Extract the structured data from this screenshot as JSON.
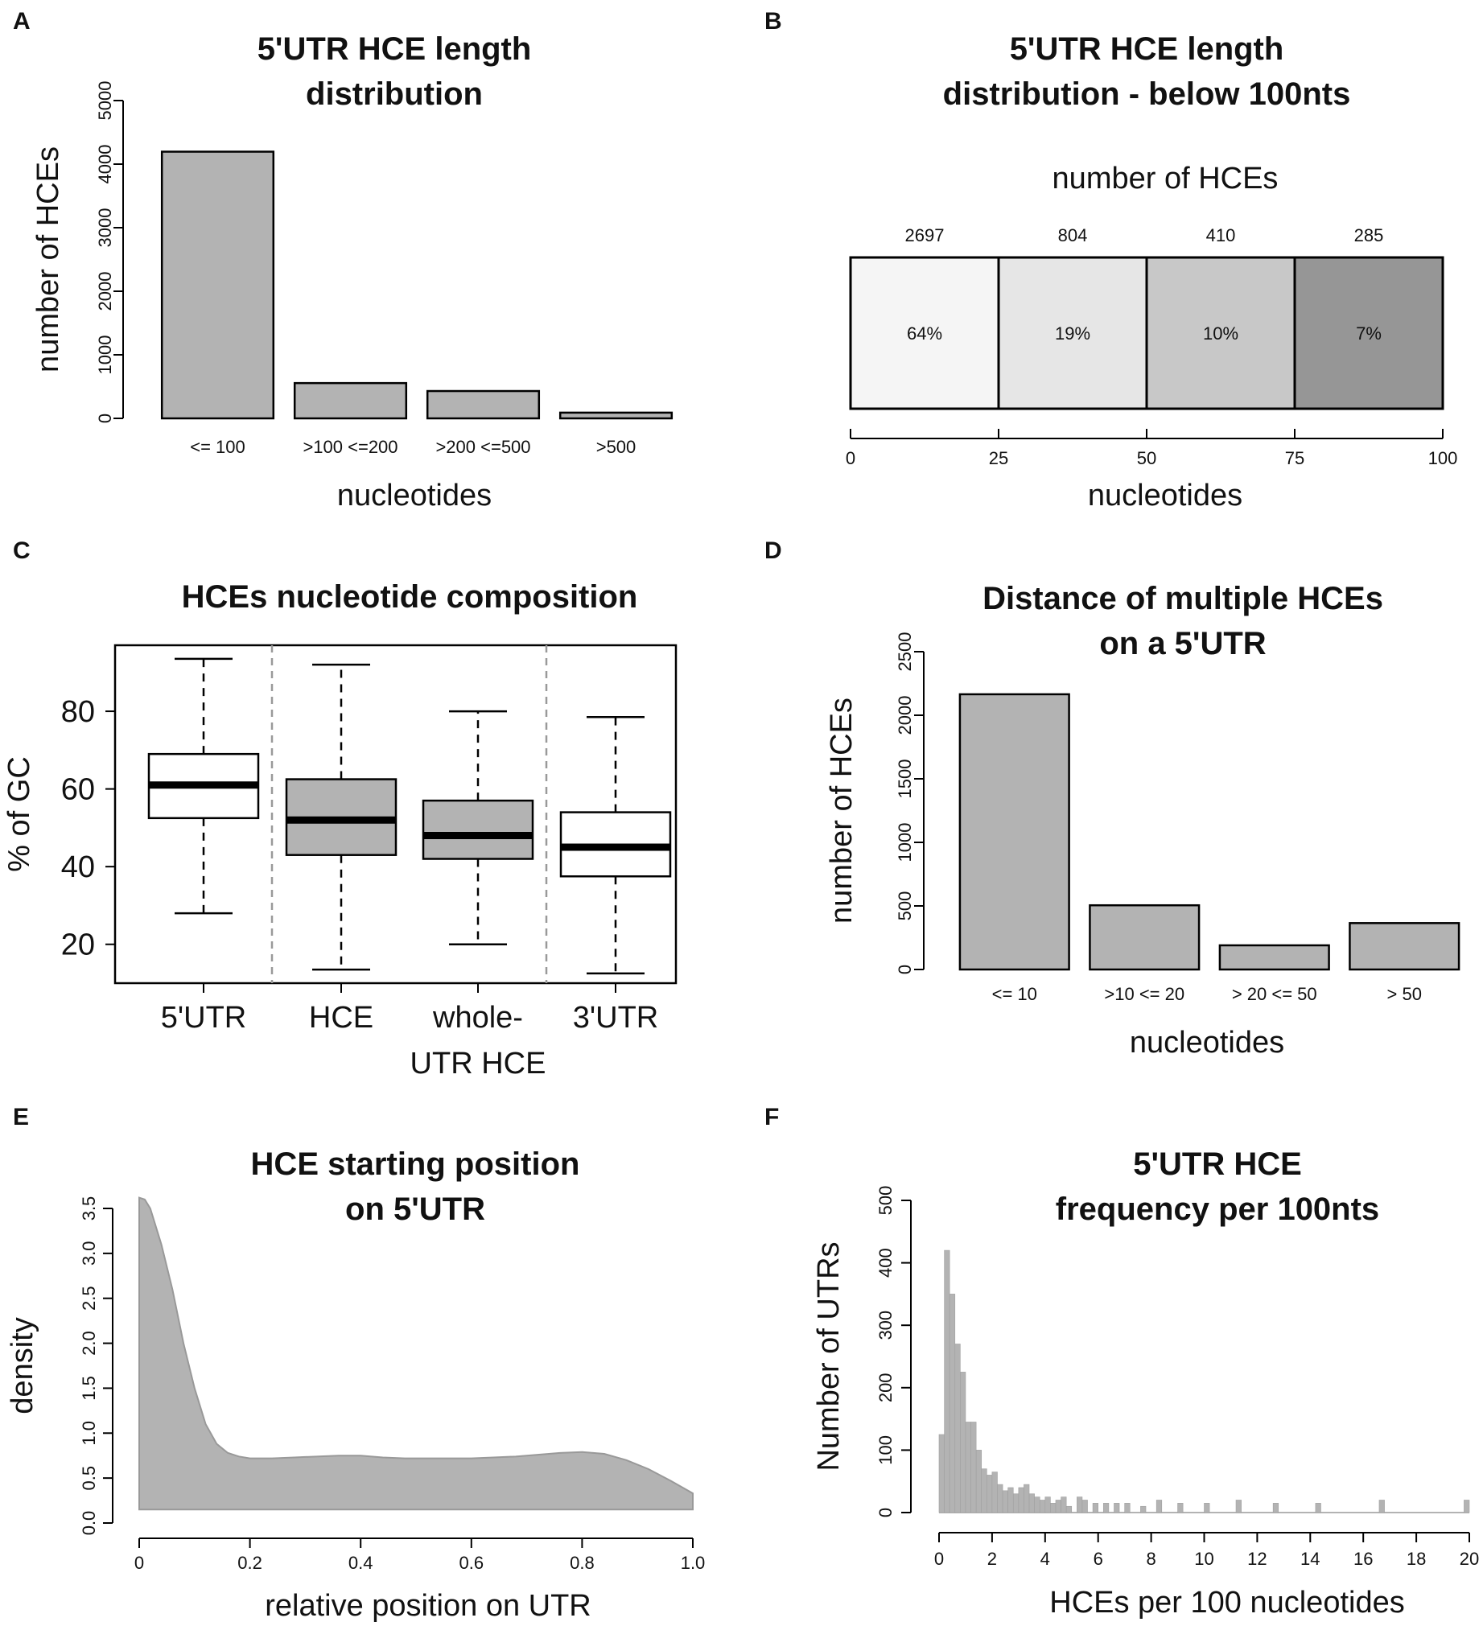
{
  "chart_data": [
    {
      "id": "A",
      "type": "bar",
      "letter": "A",
      "title_lines": [
        "5'UTR HCE length",
        "distribution"
      ],
      "xlabel": "nucleotides",
      "ylabel": "number of HCEs",
      "categories": [
        "<= 100",
        ">100 <=200",
        ">200 <=500",
        ">500"
      ],
      "values": [
        4196,
        555,
        430,
        90
      ],
      "ylim": [
        0,
        5000
      ],
      "yticks": [
        "0",
        "1000",
        "2000",
        "3000",
        "4000",
        "5000"
      ],
      "colors": {
        "bar": "#b3b3b3",
        "edge": "#000000"
      }
    },
    {
      "id": "B",
      "type": "bar",
      "letter": "B",
      "title_lines": [
        "5'UTR HCE length",
        "distribution - below 100nts"
      ],
      "subtitle": "number of HCEs",
      "xlabel": "nucleotides",
      "segments": [
        {
          "range": [
            0,
            25
          ],
          "count": "2697",
          "pct": "64%",
          "color": "#f5f5f5"
        },
        {
          "range": [
            25,
            50
          ],
          "count": "804",
          "pct": "19%",
          "color": "#e6e6e6"
        },
        {
          "range": [
            50,
            75
          ],
          "count": "410",
          "pct": "10%",
          "color": "#c8c8c8"
        },
        {
          "range": [
            75,
            100
          ],
          "count": "285",
          "pct": "7%",
          "color": "#969696"
        }
      ],
      "xticks": [
        "0",
        "25",
        "50",
        "75",
        "100"
      ]
    },
    {
      "id": "C",
      "type": "box",
      "letter": "C",
      "title_lines": [
        "HCEs nucleotide composition"
      ],
      "ylabel": "% of GC",
      "ylim": [
        10,
        97
      ],
      "yticks": [
        "20",
        "40",
        "60",
        "80"
      ],
      "groups": [
        {
          "label_lines": [
            "5'UTR"
          ],
          "whisker_low": 28,
          "q1": 52.5,
          "median": 61,
          "q3": 69,
          "whisker_high": 93.5,
          "fill": "#ffffff"
        },
        {
          "label_lines": [
            "HCE"
          ],
          "whisker_low": 13.5,
          "q1": 43,
          "median": 52,
          "q3": 62.5,
          "whisker_high": 92,
          "fill": "#b3b3b3"
        },
        {
          "label_lines": [
            "whole-",
            "UTR HCE"
          ],
          "whisker_low": 20,
          "q1": 42,
          "median": 48,
          "q3": 57,
          "whisker_high": 80,
          "fill": "#b3b3b3"
        },
        {
          "label_lines": [
            "3'UTR"
          ],
          "whisker_low": 12.5,
          "q1": 37.5,
          "median": 45,
          "q3": 54,
          "whisker_high": 78.5,
          "fill": "#ffffff"
        }
      ]
    },
    {
      "id": "D",
      "type": "bar",
      "letter": "D",
      "title_lines": [
        "Distance of multiple HCEs",
        "on a 5'UTR"
      ],
      "xlabel": "nucleotides",
      "ylabel": "number of HCEs",
      "categories": [
        "<= 10",
        ">10 <= 20",
        "> 20 <= 50",
        "> 50"
      ],
      "values": [
        2165,
        505,
        190,
        365
      ],
      "ylim": [
        0,
        2500
      ],
      "yticks": [
        "0",
        "500",
        "1000",
        "1500",
        "2000",
        "2500"
      ],
      "colors": {
        "bar": "#b3b3b3",
        "edge": "#000000"
      }
    },
    {
      "id": "E",
      "type": "area",
      "letter": "E",
      "title_lines": [
        "HCE starting position",
        "on 5'UTR"
      ],
      "xlabel": "relative position on UTR",
      "ylabel": "density",
      "xlim": [
        0,
        1
      ],
      "ylim": [
        0,
        3.5
      ],
      "xticks": [
        "0",
        "0.2",
        "0.4",
        "0.6",
        "0.8",
        "1.0"
      ],
      "yticks": [
        "0.0",
        "0.5",
        "1.0",
        "1.5",
        "2.0",
        "2.5",
        "3.0",
        "3.5"
      ],
      "x": [
        0,
        0.01,
        0.02,
        0.04,
        0.06,
        0.08,
        0.1,
        0.12,
        0.14,
        0.16,
        0.18,
        0.2,
        0.24,
        0.28,
        0.32,
        0.36,
        0.4,
        0.44,
        0.48,
        0.52,
        0.56,
        0.6,
        0.64,
        0.68,
        0.72,
        0.76,
        0.8,
        0.84,
        0.88,
        0.92,
        0.96,
        1.0
      ],
      "y": [
        3.62,
        3.6,
        3.5,
        3.1,
        2.6,
        2.0,
        1.5,
        1.1,
        0.88,
        0.78,
        0.74,
        0.72,
        0.72,
        0.73,
        0.74,
        0.75,
        0.75,
        0.73,
        0.72,
        0.72,
        0.72,
        0.72,
        0.73,
        0.74,
        0.76,
        0.78,
        0.79,
        0.77,
        0.7,
        0.6,
        0.47,
        0.33
      ],
      "baseline": 0.15,
      "colors": {
        "fill": "#b3b3b3",
        "edge": "#999999"
      }
    },
    {
      "id": "F",
      "type": "bar",
      "letter": "F",
      "title_lines": [
        "5'UTR HCE",
        "frequency per 100nts"
      ],
      "xlabel": "HCEs per 100 nucleotides",
      "ylabel": "Number of UTRs",
      "xlim": [
        0,
        20
      ],
      "ylim": [
        0,
        500
      ],
      "bin_width": 0.2,
      "xticks": [
        "0",
        "2",
        "4",
        "6",
        "8",
        "10",
        "12",
        "14",
        "16",
        "18",
        "20"
      ],
      "yticks": [
        "0",
        "100",
        "200",
        "300",
        "400",
        "500"
      ],
      "bin_starts": [
        0,
        0.2,
        0.4,
        0.6,
        0.8,
        1.0,
        1.2,
        1.4,
        1.6,
        1.8,
        2.0,
        2.2,
        2.4,
        2.6,
        2.8,
        3.0,
        3.2,
        3.4,
        3.6,
        3.8,
        4.0,
        4.2,
        4.4,
        4.6,
        4.8,
        5.2,
        5.4,
        5.8,
        6.2,
        6.6,
        7.0,
        7.6,
        8.2,
        9.0,
        10.0,
        11.2,
        12.6,
        14.2,
        16.6,
        19.8
      ],
      "counts": [
        125,
        420,
        350,
        270,
        225,
        145,
        145,
        100,
        70,
        60,
        65,
        45,
        35,
        40,
        30,
        40,
        45,
        30,
        25,
        20,
        25,
        15,
        20,
        25,
        10,
        25,
        20,
        15,
        15,
        15,
        15,
        10,
        20,
        15,
        15,
        20,
        15,
        15,
        20,
        20
      ],
      "colors": {
        "bar": "#b3b3b3"
      }
    }
  ]
}
